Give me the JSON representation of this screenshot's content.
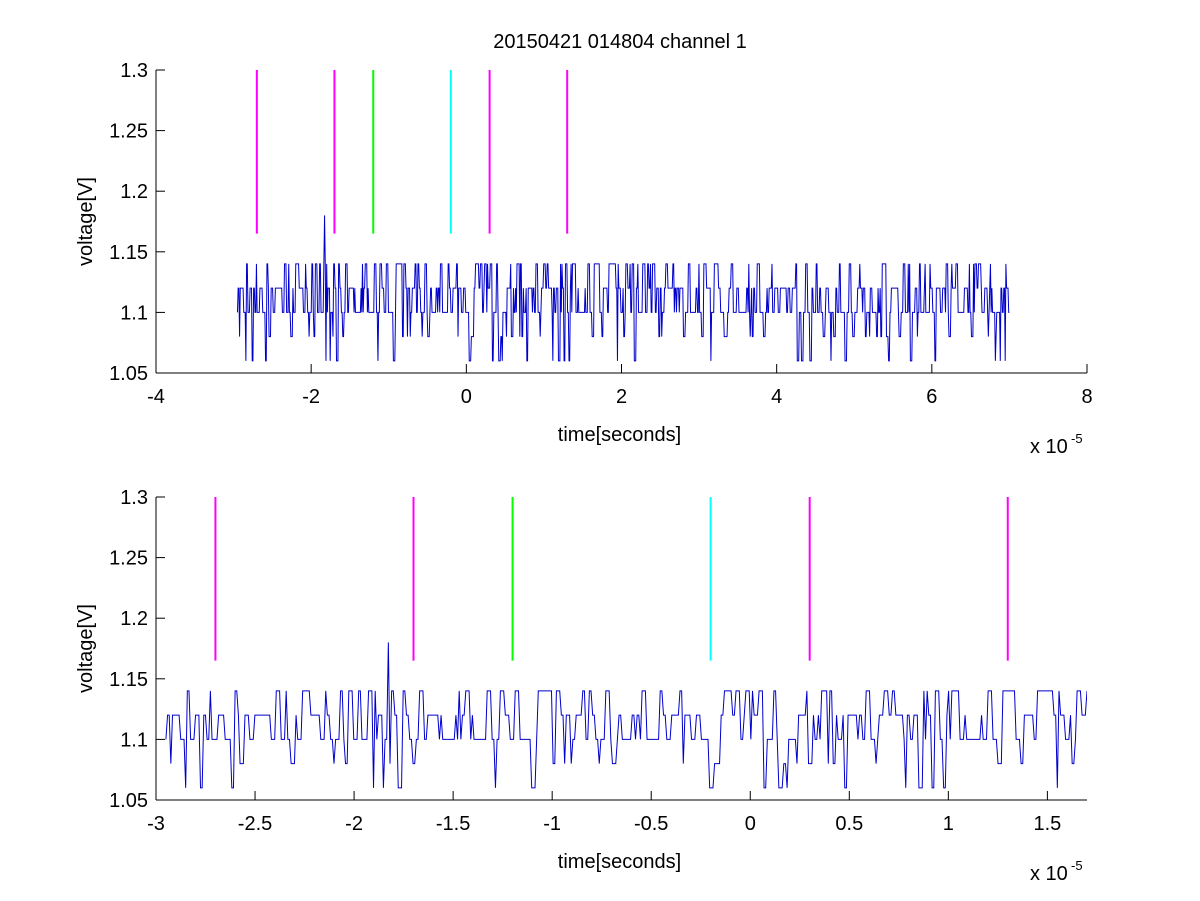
{
  "figure_title": "20150421 014804 channel 1",
  "chart_data": [
    {
      "type": "line",
      "title": "20150421 014804 channel 1",
      "xlabel": "time[seconds]",
      "ylabel": "voltage[V]",
      "x_exponent_label": "x 10",
      "x_exponent": "-5",
      "xlim": [
        -4e-05,
        8e-05
      ],
      "ylim": [
        1.05,
        1.3
      ],
      "xticks": [
        -4,
        -2,
        0,
        2,
        4,
        6,
        8
      ],
      "yticks": [
        "1.05",
        "1.1",
        "1.15",
        "1.2",
        "1.25",
        "1.3"
      ],
      "grid": false,
      "signal": {
        "color": "#0000cc",
        "x_start": -2.95e-05,
        "x_end": 7e-05,
        "levels": [
          1.06,
          1.08,
          1.1,
          1.12,
          1.14
        ],
        "peak": {
          "x": -1.83e-05,
          "y": 1.18
        }
      },
      "markers": [
        {
          "x": -2.7e-05,
          "color": "#ff00ff",
          "y_from": 1.165,
          "y_to": 1.3
        },
        {
          "x": -1.7e-05,
          "color": "#ff00ff",
          "y_from": 1.165,
          "y_to": 1.3
        },
        {
          "x": -1.2e-05,
          "color": "#00ff00",
          "y_from": 1.165,
          "y_to": 1.3
        },
        {
          "x": -2e-06,
          "color": "#00ffff",
          "y_from": 1.165,
          "y_to": 1.3
        },
        {
          "x": 3e-06,
          "color": "#ff00ff",
          "y_from": 1.165,
          "y_to": 1.3
        },
        {
          "x": 1.3e-05,
          "color": "#ff00ff",
          "y_from": 1.165,
          "y_to": 1.3
        }
      ]
    },
    {
      "type": "line",
      "title": "",
      "xlabel": "time[seconds]",
      "ylabel": "voltage[V]",
      "x_exponent_label": "x 10",
      "x_exponent": "-5",
      "xlim": [
        -3e-05,
        1.7e-05
      ],
      "ylim": [
        1.05,
        1.3
      ],
      "xticks": [
        "-3",
        "-2.5",
        "-2",
        "-1.5",
        "-1",
        "-0.5",
        "0",
        "0.5",
        "1",
        "1.5"
      ],
      "yticks": [
        "1.05",
        "1.1",
        "1.15",
        "1.2",
        "1.25",
        "1.3"
      ],
      "grid": false,
      "signal": {
        "color": "#0000cc",
        "x_start": -2.95e-05,
        "x_end": 1.7e-05,
        "levels": [
          1.06,
          1.08,
          1.1,
          1.12,
          1.14
        ],
        "peak": {
          "x": -1.83e-05,
          "y": 1.18
        }
      },
      "markers": [
        {
          "x": -2.7e-05,
          "color": "#ff00ff",
          "y_from": 1.165,
          "y_to": 1.3
        },
        {
          "x": -1.7e-05,
          "color": "#ff00ff",
          "y_from": 1.165,
          "y_to": 1.3
        },
        {
          "x": -1.2e-05,
          "color": "#00ff00",
          "y_from": 1.165,
          "y_to": 1.3
        },
        {
          "x": -2e-06,
          "color": "#00ffff",
          "y_from": 1.165,
          "y_to": 1.3
        },
        {
          "x": 3e-06,
          "color": "#ff00ff",
          "y_from": 1.165,
          "y_to": 1.3
        },
        {
          "x": 1.3e-05,
          "color": "#ff00ff",
          "y_from": 1.165,
          "y_to": 1.3
        }
      ]
    }
  ]
}
